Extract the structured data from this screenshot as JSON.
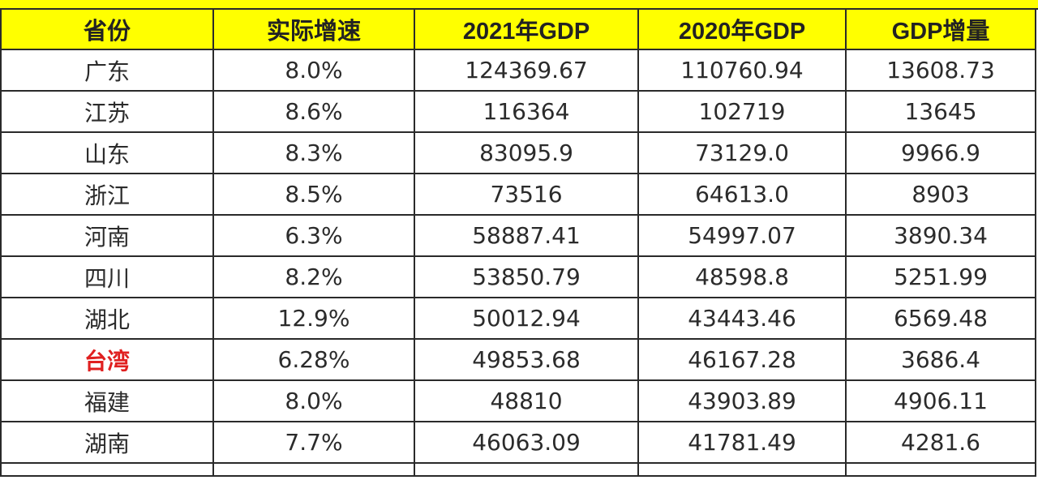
{
  "table": {
    "headers": [
      "省份",
      "实际增速",
      "2021年GDP",
      "2020年GDP",
      "GDP增量"
    ],
    "rows": [
      {
        "province": "广东",
        "growth": "8.0%",
        "gdp2021": "124369.67",
        "gdp2020": "110760.94",
        "increase": "13608.73"
      },
      {
        "province": "江苏",
        "growth": "8.6%",
        "gdp2021": "116364",
        "gdp2020": "102719",
        "increase": "13645"
      },
      {
        "province": "山东",
        "growth": "8.3%",
        "gdp2021": "83095.9",
        "gdp2020": "73129.0",
        "increase": "9966.9"
      },
      {
        "province": "浙江",
        "growth": "8.5%",
        "gdp2021": "73516",
        "gdp2020": "64613.0",
        "increase": "8903"
      },
      {
        "province": "河南",
        "growth": "6.3%",
        "gdp2021": "58887.41",
        "gdp2020": "54997.07",
        "increase": "3890.34"
      },
      {
        "province": "四川",
        "growth": "8.2%",
        "gdp2021": "53850.79",
        "gdp2020": "48598.8",
        "increase": "5251.99"
      },
      {
        "province": "湖北",
        "growth": "12.9%",
        "gdp2021": "50012.94",
        "gdp2020": "43443.46",
        "increase": "6569.48"
      },
      {
        "province": "台湾",
        "growth": "6.28%",
        "gdp2021": "49853.68",
        "gdp2020": "46167.28",
        "increase": "3686.4",
        "highlight": true
      },
      {
        "province": "福建",
        "growth": "8.0%",
        "gdp2021": "48810",
        "gdp2020": "43903.89",
        "increase": "4906.11"
      },
      {
        "province": "湖南",
        "growth": "7.7%",
        "gdp2021": "46063.09",
        "gdp2020": "41781.49",
        "increase": "4281.6"
      }
    ]
  },
  "colors": {
    "header_bg": "#ffff00",
    "highlight_text": "#e02020",
    "grid": "#2a2a2a"
  }
}
